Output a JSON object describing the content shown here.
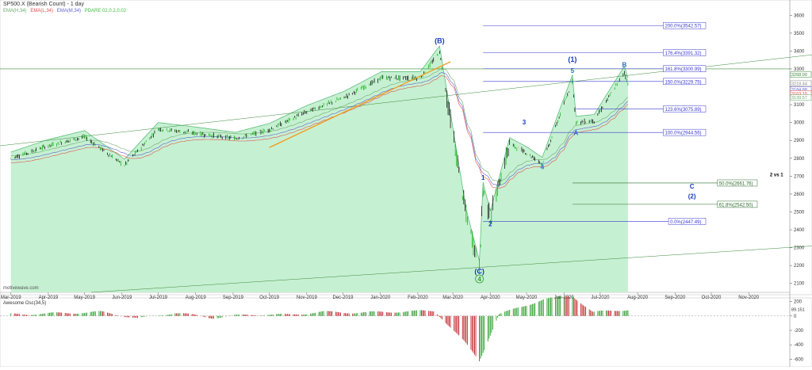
{
  "title": "SP500.X (Bearish Count) - 1 day",
  "indicators": [
    {
      "text": "EMA(H,34)",
      "color": "#6ea86e"
    },
    {
      "text": "EMA(L,34)",
      "color": "#e05050"
    },
    {
      "text": "EMA(M,34)",
      "color": "#6060d0"
    },
    {
      "text": "PDARE 02,0.2,0.02",
      "color": "#40c040"
    }
  ],
  "watermark": "motivewave.com",
  "colors": {
    "up_bar": "#00aa00",
    "down_bar": "#000000",
    "band_fill": "#c6f0d2",
    "fib_line": "#3a3ad0",
    "wave_label": "#1a3bbf",
    "osc_up": "#2e9e2e",
    "osc_down": "#c0282e"
  },
  "chart_data": [
    {
      "type": "line",
      "title": "SP500.X (Bearish Count) - 1 day",
      "xlabel": "",
      "ylabel": "",
      "x_ticks": [
        "Mar-2019",
        "Apr-2019",
        "May-2019",
        "Jun-2019",
        "Jul-2019",
        "Aug-2019",
        "Sep-2019",
        "Oct-2019",
        "Nov-2019",
        "Dec-2019",
        "Jan-2020",
        "Feb-2020",
        "Mar-2020",
        "Apr-2020",
        "May-2020",
        "Jun-2020",
        "Jul-2020",
        "Aug-2020",
        "Sep-2020",
        "Oct-2020",
        "Nov-2020"
      ],
      "y_ticks": [
        2100,
        2200,
        2300,
        2400,
        2500,
        2600,
        2700,
        2800,
        2900,
        3000,
        3100,
        3200,
        3300,
        3400,
        3500,
        3600
      ],
      "ylim": [
        2050,
        3650
      ],
      "series": [
        {
          "name": "SP500.X",
          "x": [
            "2019-03-01",
            "2019-04-01",
            "2019-05-01",
            "2019-06-03",
            "2019-07-01",
            "2019-08-01",
            "2019-09-03",
            "2019-10-01",
            "2019-11-01",
            "2019-12-02",
            "2020-01-02",
            "2020-02-03",
            "2020-02-19",
            "2020-03-12",
            "2020-03-23",
            "2020-03-26",
            "2020-04-01",
            "2020-04-17",
            "2020-05-01",
            "2020-05-14",
            "2020-06-08",
            "2020-06-11",
            "2020-06-26",
            "2020-07-21",
            "2020-07-24"
          ],
          "values": [
            2800,
            2870,
            2920,
            2760,
            2965,
            2940,
            2910,
            2960,
            3060,
            3140,
            3250,
            3250,
            3393,
            2480,
            2192,
            2630,
            2470,
            2880,
            2830,
            2770,
            3232,
            3000,
            3010,
            3280,
            3216
          ]
        }
      ],
      "fib_levels": [
        {
          "label": "200.0%(3542.57)",
          "value": 3542.57
        },
        {
          "label": "176.4%(3391.32)",
          "value": 3391.32
        },
        {
          "label": "161.8%(3300.99)",
          "value": 3300.99
        },
        {
          "label": "150.0%(3229.75)",
          "value": 3229.75
        },
        {
          "label": "123.6%(3075.89)",
          "value": 3075.89
        },
        {
          "label": "100.0%(2944.56)",
          "value": 2944.56
        },
        {
          "label": "50.0%(2661.76)",
          "value": 2661.76
        },
        {
          "label": "61.8%(2542.50)",
          "value": 2542.5
        },
        {
          "label": "0.0%(2447.49)",
          "value": 2447.49
        }
      ],
      "price_tags": [
        "3268.00",
        "3218.44",
        "3184.88",
        "3163.15",
        "3139.57"
      ],
      "annotations": [
        "(B)",
        "(C)",
        "4",
        "(1)",
        "5",
        "1",
        "2",
        "3",
        "4",
        "A",
        "B",
        "C",
        "(2)",
        "2 vs 1"
      ]
    },
    {
      "type": "bar",
      "title": "Awesome Osc(34,5)",
      "y_ticks": [
        200,
        0,
        -200,
        -400,
        -600
      ],
      "ylim": [
        -650,
        250
      ],
      "current_value": "89.151",
      "series": [
        {
          "name": "Awesome Osc(34,5)",
          "x": [
            "2019-03",
            "2019-05",
            "2019-06",
            "2019-07",
            "2019-08",
            "2019-09",
            "2019-10",
            "2019-11",
            "2019-12",
            "2020-01",
            "2020-02",
            "2020-03-10",
            "2020-03-23",
            "2020-04-08",
            "2020-05",
            "2020-06-08",
            "2020-06-25",
            "2020-07-24"
          ],
          "values": [
            25,
            55,
            -35,
            45,
            -25,
            20,
            15,
            55,
            45,
            60,
            70,
            -350,
            -620,
            20,
            230,
            280,
            50,
            90
          ]
        }
      ]
    }
  ]
}
